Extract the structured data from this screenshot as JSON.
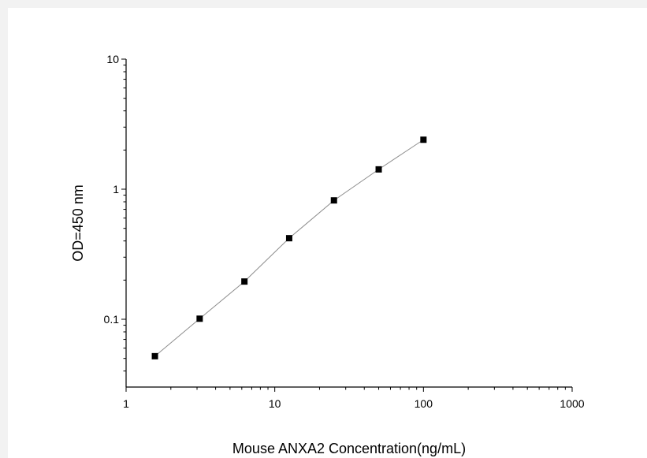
{
  "chart_data": {
    "type": "scatter",
    "xlabel": "Mouse ANXA2 Concentration(ng/mL)",
    "ylabel": "OD=450 nm",
    "xscale": "log",
    "yscale": "log",
    "xlim": [
      1,
      1000
    ],
    "ylim": [
      0.03,
      10
    ],
    "x_tick_labels": [
      "1",
      "10",
      "100",
      "1000"
    ],
    "x_tick_values": [
      1,
      10,
      100,
      1000
    ],
    "y_tick_labels": [
      "0.1",
      "1",
      "10"
    ],
    "y_tick_values": [
      0.1,
      1,
      10
    ],
    "grid": false,
    "marker": "square",
    "connect_points": true,
    "point_color": "#000000",
    "line_color": "#8c8c8c",
    "series": [
      {
        "x": [
          1.5625,
          3.125,
          6.25,
          12.5,
          25,
          50,
          100
        ],
        "y": [
          0.052,
          0.101,
          0.195,
          0.42,
          0.82,
          1.42,
          2.4
        ]
      }
    ]
  }
}
